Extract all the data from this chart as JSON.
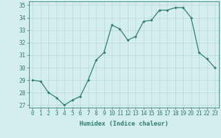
{
  "x": [
    0,
    1,
    2,
    3,
    4,
    5,
    6,
    7,
    8,
    9,
    10,
    11,
    12,
    13,
    14,
    15,
    16,
    17,
    18,
    19,
    20,
    21,
    22,
    23
  ],
  "y": [
    29.0,
    28.9,
    28.0,
    27.6,
    27.0,
    27.4,
    27.7,
    29.0,
    30.6,
    31.2,
    33.4,
    33.1,
    32.2,
    32.5,
    33.7,
    33.8,
    34.6,
    34.6,
    34.8,
    34.8,
    34.0,
    31.2,
    30.7,
    30.0
  ],
  "line_color": "#2e7d6e",
  "marker": "D",
  "markersize": 1.8,
  "linewidth": 0.9,
  "bg_color": "#d4eeee",
  "grid_color": "#b8d8d8",
  "xlabel": "Humidex (Indice chaleur)",
  "ylim_min": 26.8,
  "ylim_max": 35.3,
  "xlim_min": -0.5,
  "xlim_max": 23.5,
  "yticks": [
    27,
    28,
    29,
    30,
    31,
    32,
    33,
    34,
    35
  ],
  "xticks": [
    0,
    1,
    2,
    3,
    4,
    5,
    6,
    7,
    8,
    9,
    10,
    11,
    12,
    13,
    14,
    15,
    16,
    17,
    18,
    19,
    20,
    21,
    22,
    23
  ],
  "xlabel_fontsize": 6.5,
  "tick_fontsize": 5.8
}
